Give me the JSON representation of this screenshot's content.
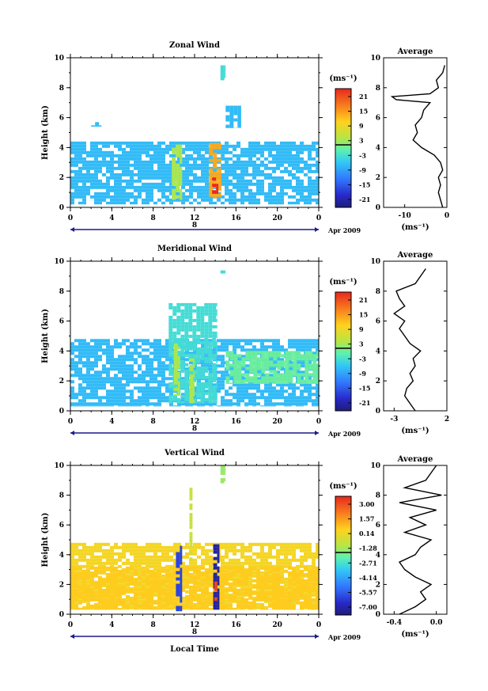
{
  "chart_data": [
    {
      "type": "heatmap",
      "title": "Zonal Wind",
      "ylabel": "Height (km)",
      "x_ticks": [
        "0",
        "4",
        "8",
        "12",
        "16",
        "20",
        "0"
      ],
      "y_ticks": [
        "0",
        "2",
        "4",
        "6",
        "8",
        "10"
      ],
      "xlim": [
        0,
        24
      ],
      "ylim": [
        0,
        10
      ],
      "day_label": "8",
      "date_label": "Apr 2009",
      "colorbar_unit": "(ms⁻¹)",
      "colorbar_ticks": [
        "21",
        "15",
        "9",
        "3",
        "-3",
        "-9",
        "-15",
        "-21"
      ],
      "features": [
        {
          "x0": 0.0,
          "x1": 24.0,
          "y0": 0.2,
          "y1": 4.4,
          "value": -6
        },
        {
          "x0": 9.8,
          "x1": 10.8,
          "y0": 0.5,
          "y1": 4.2,
          "value": 3
        },
        {
          "x0": 13.4,
          "x1": 14.6,
          "y0": 0.6,
          "y1": 4.3,
          "value": 12
        },
        {
          "x0": 13.7,
          "x1": 14.3,
          "y0": 0.9,
          "y1": 2.0,
          "value": 21
        },
        {
          "x0": 2.0,
          "x1": 3.0,
          "y0": 5.4,
          "y1": 5.7,
          "value": -6
        },
        {
          "x0": 15.0,
          "x1": 16.5,
          "y0": 5.3,
          "y1": 6.8,
          "value": -6
        },
        {
          "x0": 14.5,
          "x1": 15.0,
          "y0": 8.5,
          "y1": 9.5,
          "value": -3
        }
      ],
      "average": {
        "title": "Average",
        "xlabel": "(ms⁻¹)",
        "x_ticks": [
          "-10",
          "0"
        ],
        "y_ticks": [
          "0",
          "2",
          "4",
          "6",
          "8",
          "10"
        ],
        "xlim": [
          -15,
          0
        ],
        "height_km": [
          0,
          0.5,
          1,
          1.5,
          2,
          2.5,
          3,
          3.5,
          4,
          4.5,
          5,
          5.5,
          6,
          6.5,
          7,
          7.2,
          7.4,
          7.6,
          8,
          8.5,
          9,
          9.5
        ],
        "values": [
          -1,
          -1.5,
          -2,
          -1.5,
          -2,
          -1,
          -1.5,
          -3,
          -6,
          -8,
          -7,
          -7.5,
          -6,
          -5.5,
          -4,
          -12,
          -13,
          -4,
          -2,
          -2.5,
          -1,
          -0.5
        ]
      }
    },
    {
      "type": "heatmap",
      "title": "Meridional Wind",
      "ylabel": "Height (km)",
      "x_ticks": [
        "0",
        "4",
        "8",
        "12",
        "16",
        "20",
        "0"
      ],
      "y_ticks": [
        "0",
        "2",
        "4",
        "6",
        "8",
        "10"
      ],
      "xlim": [
        0,
        24
      ],
      "ylim": [
        0,
        10
      ],
      "day_label": "8",
      "date_label": "Apr 2009",
      "colorbar_unit": "(ms⁻¹)",
      "colorbar_ticks": [
        "21",
        "15",
        "9",
        "3",
        "-3",
        "-9",
        "-15",
        "-21"
      ],
      "features": [
        {
          "x0": 0.0,
          "x1": 24.0,
          "y0": 0.3,
          "y1": 4.8,
          "value": -6
        },
        {
          "x0": 15.0,
          "x1": 24.0,
          "y0": 1.8,
          "y1": 4.0,
          "value": 0
        },
        {
          "x0": 9.5,
          "x1": 14.2,
          "y0": 0.5,
          "y1": 7.2,
          "value": -3
        },
        {
          "x0": 10.0,
          "x1": 10.6,
          "y0": 1.0,
          "y1": 4.5,
          "value": 3
        },
        {
          "x0": 11.5,
          "x1": 12.0,
          "y0": 0.5,
          "y1": 3.5,
          "value": 3
        },
        {
          "x0": 14.5,
          "x1": 15.0,
          "y0": 9.0,
          "y1": 9.6,
          "value": -3
        }
      ],
      "average": {
        "title": "Average",
        "xlabel": "(ms⁻¹)",
        "x_ticks": [
          "-3",
          "2"
        ],
        "y_ticks": [
          "0",
          "2",
          "4",
          "6",
          "8",
          "10"
        ],
        "xlim": [
          -4,
          2
        ],
        "height_km": [
          0,
          0.5,
          1,
          1.5,
          2,
          2.5,
          3,
          3.5,
          4,
          4.5,
          5,
          5.5,
          6,
          6.5,
          7,
          7.5,
          8,
          8.5,
          9,
          9.5
        ],
        "values": [
          -1,
          -1.5,
          -2,
          -1.8,
          -1.2,
          -1.5,
          -1,
          -1.2,
          -0.5,
          -1.5,
          -2,
          -2.5,
          -2,
          -3,
          -2,
          -2.5,
          -2.8,
          -1,
          -0.5,
          0
        ]
      }
    },
    {
      "type": "heatmap",
      "title": "Vertical Wind",
      "ylabel": "Height (km)",
      "xlabel": "Local Time",
      "x_ticks": [
        "0",
        "4",
        "8",
        "12",
        "16",
        "20",
        "0"
      ],
      "y_ticks": [
        "0",
        "2",
        "4",
        "6",
        "8",
        "10"
      ],
      "xlim": [
        0,
        24
      ],
      "ylim": [
        0,
        10
      ],
      "day_label": "8",
      "date_label": "Apr 2009",
      "colorbar_unit": "(ms⁻¹)",
      "colorbar_ticks": [
        "3.00",
        "1.57",
        "0.14",
        "-1.28",
        "-2.71",
        "-4.14",
        "-5.57",
        "-7.00"
      ],
      "features": [
        {
          "x0": 0.0,
          "x1": 24.0,
          "y0": 0.3,
          "y1": 4.8,
          "value": 0.0
        },
        {
          "x0": 0.0,
          "x1": 24.0,
          "y0": 0.3,
          "y1": 3.2,
          "value": 0.3
        },
        {
          "x0": 10.2,
          "x1": 10.8,
          "y0": 0.2,
          "y1": 4.6,
          "value": -5.5
        },
        {
          "x0": 13.8,
          "x1": 14.4,
          "y0": 0.3,
          "y1": 4.7,
          "value": -6.5
        },
        {
          "x0": 13.9,
          "x1": 14.2,
          "y0": 0.9,
          "y1": 2.2,
          "value": 2.5
        },
        {
          "x0": 11.5,
          "x1": 11.8,
          "y0": 3.5,
          "y1": 8.5,
          "value": -0.8
        },
        {
          "x0": 14.5,
          "x1": 15.0,
          "y0": 8.8,
          "y1": 10.0,
          "value": -1.5
        }
      ],
      "average": {
        "title": "Average",
        "xlabel": "(ms⁻¹)",
        "x_ticks": [
          "-0.4",
          "0.0"
        ],
        "y_ticks": [
          "0",
          "2",
          "4",
          "6",
          "8",
          "10"
        ],
        "xlim": [
          -0.5,
          0.1
        ],
        "height_km": [
          0,
          0.5,
          1,
          1.5,
          2,
          2.5,
          3,
          3.5,
          4,
          4.5,
          5,
          5.5,
          6,
          6.5,
          7,
          7.5,
          8,
          8.5,
          9,
          9.5,
          10
        ],
        "values": [
          -0.35,
          -0.2,
          -0.1,
          -0.15,
          -0.05,
          -0.2,
          -0.3,
          -0.35,
          -0.2,
          -0.15,
          -0.05,
          -0.3,
          -0.1,
          -0.25,
          0.0,
          -0.35,
          0.05,
          -0.3,
          -0.1,
          -0.05,
          0.0
        ]
      }
    }
  ]
}
